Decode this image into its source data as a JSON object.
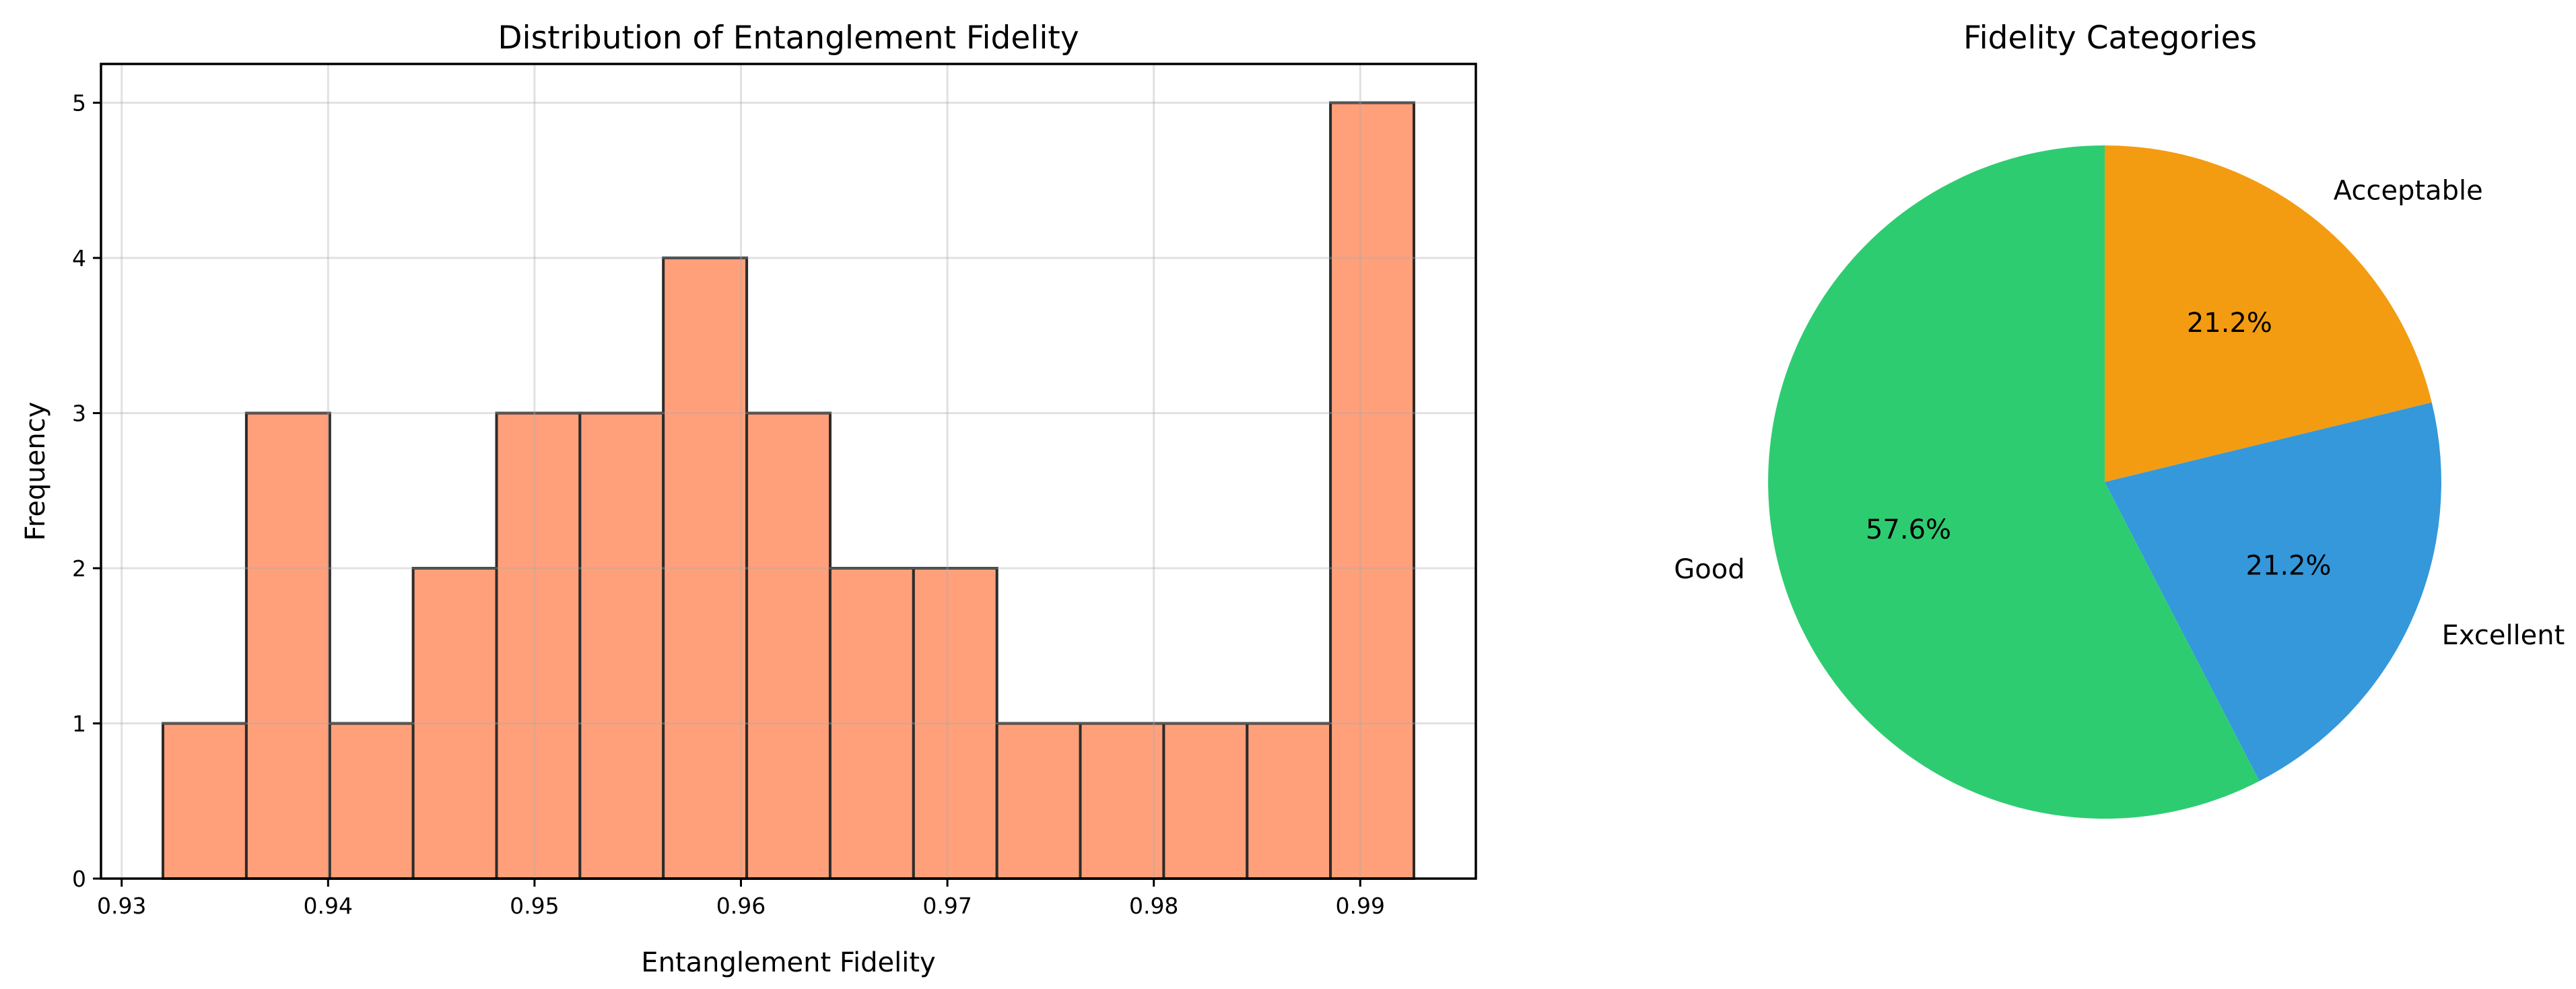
{
  "figure": {
    "background": "#FFFFFF",
    "text_color": "#000000"
  },
  "chart_data": [
    {
      "type": "histogram",
      "title": "Distribution of Entanglement Fidelity",
      "xlabel": "Entanglement Fidelity",
      "ylabel": "Frequency",
      "bin_edges": [
        0.932,
        0.93604,
        0.94008,
        0.94412,
        0.94816,
        0.9522,
        0.95624,
        0.96028,
        0.96432,
        0.96836,
        0.9724,
        0.97644,
        0.98048,
        0.98452,
        0.98856,
        0.9926
      ],
      "counts": [
        1,
        3,
        1,
        2,
        3,
        3,
        4,
        3,
        2,
        2,
        1,
        1,
        1,
        1,
        5
      ],
      "total_samples": 33,
      "xticks": [
        0.93,
        0.94,
        0.95,
        0.96,
        0.97,
        0.98,
        0.99
      ],
      "xtick_labels": [
        "0.93",
        "0.94",
        "0.95",
        "0.96",
        "0.97",
        "0.98",
        "0.99"
      ],
      "yticks": [
        0,
        1,
        2,
        3,
        4,
        5
      ],
      "ytick_labels": [
        "0",
        "1",
        "2",
        "3",
        "4",
        "5"
      ],
      "xlim": [
        0.929,
        0.9956
      ],
      "ylim": [
        0,
        5.25
      ],
      "grid": true,
      "grid_on_top": true,
      "bar_color": "#FFA07A",
      "bar_edge_color": "#2B2B2B",
      "grid_color": "#AAAAAA",
      "spine_color": "#000000"
    },
    {
      "type": "pie",
      "title": "Fidelity Categories",
      "direction": "clockwise",
      "start_angle": "top",
      "label_radius": 1.1,
      "pct_radius": 0.6,
      "slices": [
        {
          "label": "Acceptable",
          "value": 21.2,
          "pct_label": "21.2%",
          "color": "#F39C12"
        },
        {
          "label": "Excellent",
          "value": 21.2,
          "pct_label": "21.2%",
          "color": "#3498DB"
        },
        {
          "label": "Good",
          "value": 57.6,
          "pct_label": "57.6%",
          "color": "#2ECC71"
        }
      ]
    }
  ]
}
